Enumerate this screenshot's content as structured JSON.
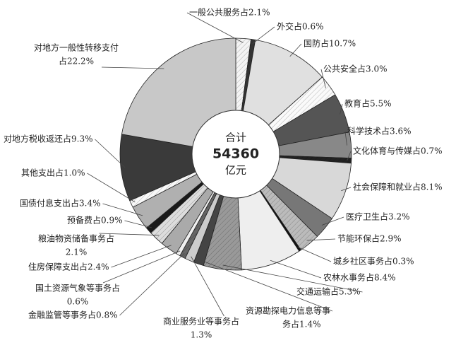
{
  "chart_data": {
    "type": "pie",
    "center_label": [
      "合计",
      "54360",
      "亿元"
    ],
    "values": [
      2.1,
      0.6,
      10.7,
      3.0,
      5.5,
      3.6,
      0.7,
      8.1,
      3.2,
      2.9,
      0.3,
      8.4,
      5.3,
      1.4,
      1.3,
      0.8,
      0.6,
      2.4,
      2.1,
      0.9,
      3.4,
      1.0,
      9.3,
      22.2
    ],
    "value_labels": [
      [
        "一般公共服务占2.1%"
      ],
      [
        "外交占0.6%"
      ],
      [
        "国防占10.7%"
      ],
      [
        "公共安全占3.0%"
      ],
      [
        "教育占5.5%"
      ],
      [
        "科学技术占3.6%"
      ],
      [
        "文化体育与传媒占0.7%"
      ],
      [
        "社会保障和就业占8.1%"
      ],
      [
        "医疗卫生占3.2%"
      ],
      [
        "节能环保占2.9%"
      ],
      [
        "城乡社区事务占0.3%"
      ],
      [
        "农林水事务占8.4%"
      ],
      [
        "交通运输占5.3%"
      ],
      [
        "资源勘探电力信息等事",
        "务占1.4%"
      ],
      [
        "商业服务业等事务占",
        "1.3%"
      ],
      [
        "金融监管等事务占0.8%"
      ],
      [
        "国土资源气象等事务占",
        "0.6%"
      ],
      [
        "住房保障支出占2.4%"
      ],
      [
        "粮油物资储备事务占",
        "2.1%"
      ],
      [
        "预备费占0.9%"
      ],
      [
        "国债付息支出占3.4%"
      ],
      [
        "其他支出占1.0%"
      ],
      [
        "对地方税收返还占9.3%"
      ],
      [
        "对地方一般性转移支付",
        "占22.2%"
      ]
    ],
    "colors": [
      "#f4f4f4",
      "#333333",
      "#e0e0e0",
      "#fafafa",
      "#555555",
      "#888888",
      "#222222",
      "#d8d8d8",
      "#777777",
      "#bbbbbb",
      "#111111",
      "#eeeeee",
      "#999999",
      "#444444",
      "#cccccc",
      "#666666",
      "#f0f0f0",
      "#aaaaaa",
      "#dddddd",
      "#1a1a1a",
      "#b0b0b0",
      "#f8f8f8",
      "#3a3a3a",
      "#c8c8c8"
    ]
  }
}
